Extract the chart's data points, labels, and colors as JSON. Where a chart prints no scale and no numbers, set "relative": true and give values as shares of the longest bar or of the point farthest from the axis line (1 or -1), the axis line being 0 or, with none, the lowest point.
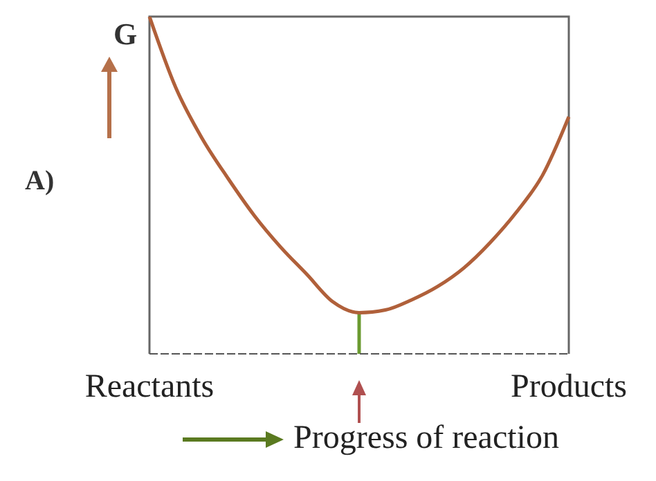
{
  "chart_data": {
    "type": "line",
    "relative": true,
    "ylabel": "G",
    "xlabel": "Progress of reaction",
    "annotations": [
      "A)"
    ],
    "categories": [
      "Reactants",
      null,
      null,
      null,
      null,
      null,
      null,
      null,
      null,
      null,
      null,
      null,
      null,
      null,
      null,
      null,
      "Products"
    ],
    "grid": false,
    "marker": "none",
    "line_style": "solid",
    "series": [
      {
        "color": "#b0603a",
        "values": [
          1,
          0.79,
          0.64,
          0.52,
          0.41,
          0.317,
          0.236,
          0.154,
          0.122,
          0.13,
          0.16,
          0.2,
          0.255,
          0.33,
          0.42,
          0.53,
          0.703
        ]
      }
    ]
  }
}
